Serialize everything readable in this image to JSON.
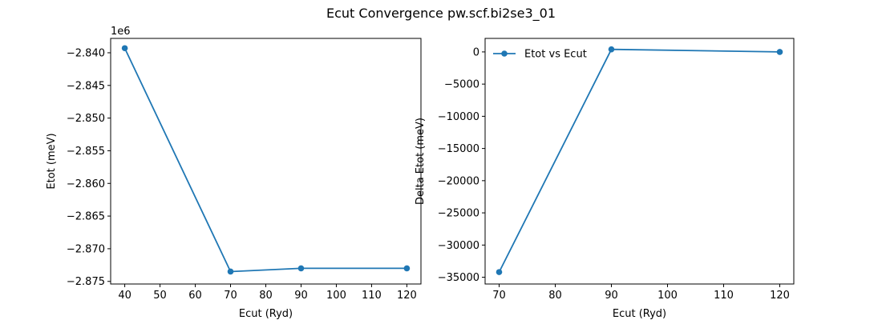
{
  "figure_title": "Ecut Convergence pw.scf.bi2se3_01",
  "colors": {
    "line": "#1f77b4",
    "axes": "#000000",
    "background": "#ffffff"
  },
  "chart_data": [
    {
      "type": "line",
      "xlabel": "Ecut (Ryd)",
      "ylabel": "Etot (meV)",
      "offset_text": "1e6",
      "x_ticks": [
        "40",
        "50",
        "60",
        "70",
        "80",
        "90",
        "100",
        "110",
        "120"
      ],
      "y_ticks": [
        "−2.840",
        "−2.845",
        "−2.850",
        "−2.855",
        "−2.860",
        "−2.865",
        "−2.870",
        "−2.875"
      ],
      "xlim": [
        36,
        124
      ],
      "ylim": [
        -2875400,
        -2837800
      ],
      "legend": null,
      "series": [
        {
          "x": [
            40,
            70,
            90,
            120
          ],
          "y": [
            -2839300,
            -2873500,
            -2873000,
            -2873000
          ]
        }
      ]
    },
    {
      "type": "line",
      "xlabel": "Ecut (Ryd)",
      "ylabel": "Delta Etot (meV)",
      "x_ticks": [
        "70",
        "80",
        "90",
        "100",
        "110",
        "120"
      ],
      "y_ticks": [
        "0",
        "−5000",
        "−10000",
        "−15000",
        "−20000",
        "−25000",
        "−30000",
        "−35000"
      ],
      "xlim": [
        67.5,
        122.5
      ],
      "ylim": [
        -36050,
        2100
      ],
      "legend": {
        "position": "upper-left",
        "label": "Etot vs Ecut"
      },
      "series": [
        {
          "name": "Etot vs Ecut",
          "x": [
            70,
            90,
            120
          ],
          "y": [
            -34200,
            400,
            0
          ]
        }
      ]
    }
  ]
}
